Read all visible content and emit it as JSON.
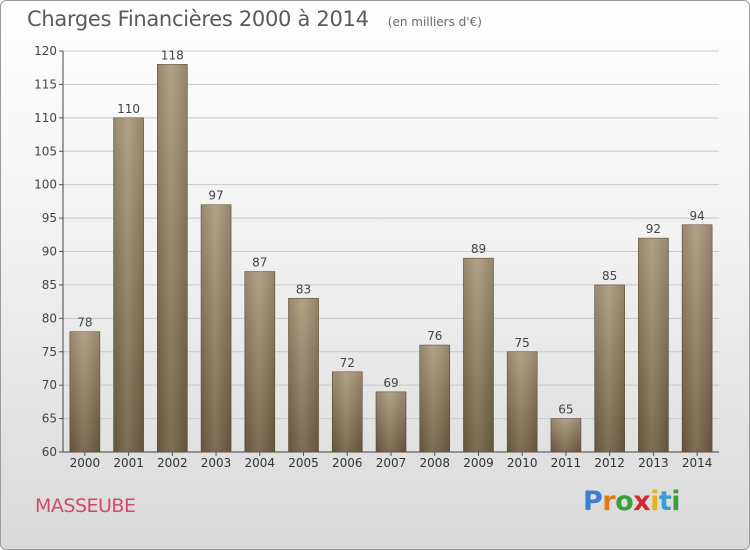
{
  "title": "Charges Financières 2000 à 2014",
  "subtitle": "(en milliers d'€)",
  "place": "MASSEUBE",
  "logo": {
    "letters": [
      "P",
      "r",
      "o",
      "x",
      "i",
      "t",
      "i"
    ],
    "colors": [
      "#3a7fd0",
      "#e07a1c",
      "#3aa03a",
      "#d02a2a",
      "#e8b01c",
      "#3a9fd0",
      "#3aa03a"
    ]
  },
  "chart_data": {
    "type": "bar",
    "categories": [
      "2000",
      "2001",
      "2002",
      "2003",
      "2004",
      "2005",
      "2006",
      "2007",
      "2008",
      "2009",
      "2010",
      "2011",
      "2012",
      "2013",
      "2014"
    ],
    "values": [
      78,
      110,
      118,
      97,
      87,
      83,
      72,
      69,
      76,
      89,
      75,
      65,
      85,
      92,
      94
    ],
    "ylim": [
      60,
      120
    ],
    "yticks": [
      60,
      65,
      70,
      75,
      80,
      85,
      90,
      95,
      100,
      105,
      110,
      115,
      120
    ],
    "grid": true,
    "bar_color": "#8c7a5e"
  }
}
